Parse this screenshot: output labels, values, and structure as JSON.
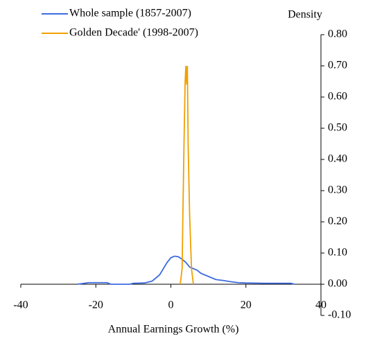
{
  "chart_data": {
    "type": "line",
    "x_label": "Annual Earnings Growth (%)",
    "y_label": "Density",
    "xlim": [
      -40,
      40
    ],
    "xticks": [
      -40,
      -20,
      0,
      20,
      40
    ],
    "ylim": [
      -0.1,
      0.8
    ],
    "yticks": [
      {
        "value": -0.1,
        "label": "-0.10"
      },
      {
        "value": 0,
        "label": "0.00"
      },
      {
        "value": 0.1,
        "label": "0.10"
      },
      {
        "value": 0.2,
        "label": "0.20"
      },
      {
        "value": 0.3,
        "label": "0.30"
      },
      {
        "value": 0.4,
        "label": "0.40"
      },
      {
        "value": 0.5,
        "label": "0.50"
      },
      {
        "value": 0.6,
        "label": "0.60"
      },
      {
        "value": 0.7,
        "label": "0.70"
      },
      {
        "value": 0.8,
        "label": "0.80"
      }
    ],
    "legend": "top-left",
    "series": [
      {
        "name": "Whole sample (1857-2007)",
        "color": "#3d6be0",
        "x": [
          -25,
          -23,
          -22,
          -17,
          -16,
          -11,
          -10,
          -7,
          -5,
          -3,
          -2,
          -1,
          0,
          1,
          2,
          3,
          4,
          5,
          6,
          7,
          8,
          9,
          10,
          11,
          12,
          14,
          16,
          18,
          20,
          25,
          32,
          33
        ],
        "values": [
          0.0,
          0.003,
          0.005,
          0.005,
          0.0,
          0.0,
          0.003,
          0.004,
          0.01,
          0.03,
          0.05,
          0.07,
          0.085,
          0.09,
          0.088,
          0.08,
          0.07,
          0.055,
          0.05,
          0.045,
          0.035,
          0.03,
          0.025,
          0.02,
          0.015,
          0.012,
          0.008,
          0.005,
          0.004,
          0.003,
          0.003,
          0.0
        ]
      },
      {
        "name": "Golden Decade' (1998-2007)",
        "color": "#f0a000",
        "x": [
          2.5,
          3,
          3.2,
          3.5,
          3.8,
          4,
          4.2,
          4.4,
          4.6,
          5,
          5.5,
          6
        ],
        "values": [
          0.0,
          0.05,
          0.22,
          0.45,
          0.65,
          0.7,
          0.64,
          0.7,
          0.45,
          0.22,
          0.05,
          0.0
        ]
      }
    ]
  }
}
